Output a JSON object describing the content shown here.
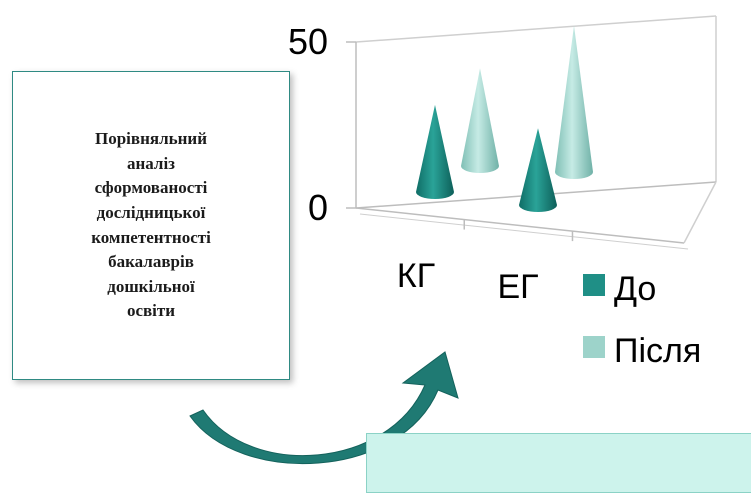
{
  "textbox": {
    "text": "Порівняльний\nаналіз\nсформованості\nдослідницької\nкомпетентності\nбакалаврів\nдошкільної\nосвіти"
  },
  "colors": {
    "series_before": "#1f8f86",
    "series_after": "#9dd3ca",
    "box_border": "#2f8a83",
    "arrow": "#1f7a73",
    "bottom_box": "#cdf3ec"
  },
  "chart_data": {
    "type": "bar",
    "style": "3d-cone",
    "categories": [
      "КГ",
      "ЕГ"
    ],
    "series": [
      {
        "name": "До",
        "values": [
          25,
          22
        ]
      },
      {
        "name": "Після",
        "values": [
          28,
          42
        ]
      }
    ],
    "ylim": [
      0,
      50
    ],
    "yticks": [
      0,
      50
    ],
    "legend": "right",
    "grid": false
  }
}
